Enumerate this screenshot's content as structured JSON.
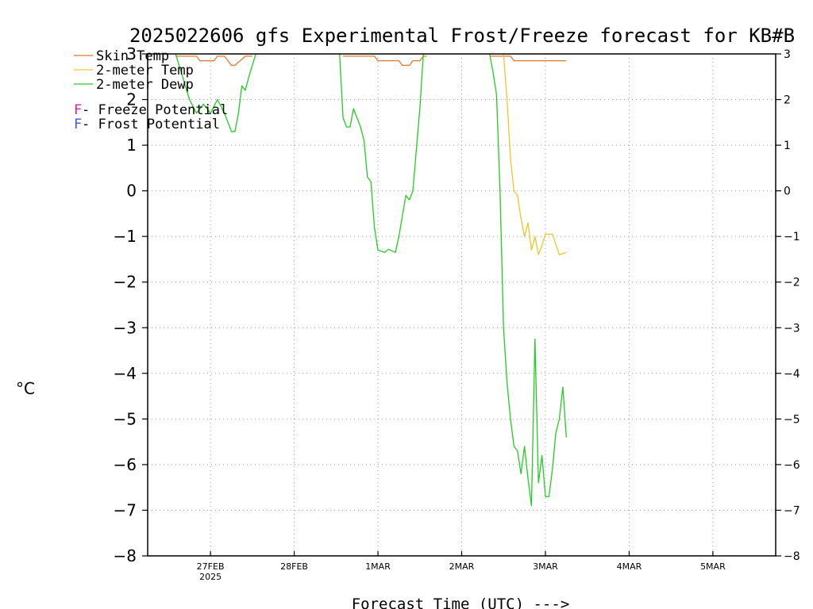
{
  "chart_data": {
    "type": "line",
    "title": "2025022606 gfs Experimental Frost/Freeze forecast for KB#B",
    "xlabel": "Forecast Time (UTC) --->",
    "ylabel": "°C",
    "ylim": [
      -8,
      3
    ],
    "yticks": [
      3,
      2,
      1,
      0,
      -1,
      -2,
      -3,
      -4,
      -5,
      -6,
      -7,
      -8
    ],
    "xlim": [
      "2025-02-26T06:00",
      "2025-03-05T18:00"
    ],
    "xticks": [
      {
        "label": "27FEB",
        "sublabel": "2025",
        "x": "2025-02-27T00:00"
      },
      {
        "label": "28FEB",
        "x": "2025-02-28T00:00"
      },
      {
        "label": "1MAR",
        "x": "2025-03-01T00:00"
      },
      {
        "label": "2MAR",
        "x": "2025-03-02T00:00"
      },
      {
        "label": "3MAR",
        "x": "2025-03-03T00:00"
      },
      {
        "label": "4MAR",
        "x": "2025-03-04T00:00"
      },
      {
        "label": "5MAR",
        "x": "2025-03-05T00:00"
      }
    ],
    "grid": true,
    "legend": [
      {
        "name": "Skin Temp",
        "color": "#e0782a"
      },
      {
        "name": "2-meter Temp",
        "color": "#e8c829"
      },
      {
        "name": "2-meter Dewp",
        "color": "#22cc22"
      },
      {
        "prefix": "F",
        "name": " - Freeze Potential",
        "color": "#cc22aa"
      },
      {
        "prefix": "F",
        "name": " - Frost Potential",
        "color": "#4455ee"
      }
    ],
    "series": [
      {
        "name": "Skin Temp",
        "color": "#e0782a",
        "segments": [
          [
            [
              "2025-02-26T14:00",
              2.95
            ],
            [
              "2025-02-26T20:00",
              2.95
            ],
            [
              "2025-02-26T21:00",
              2.85
            ],
            [
              "2025-02-27T01:00",
              2.85
            ],
            [
              "2025-02-27T02:00",
              2.95
            ],
            [
              "2025-02-27T04:00",
              2.95
            ],
            [
              "2025-02-27T06:00",
              2.75
            ],
            [
              "2025-02-27T07:00",
              2.75
            ],
            [
              "2025-02-27T10:00",
              2.95
            ],
            [
              "2025-02-27T12:00",
              2.95
            ]
          ],
          [
            [
              "2025-02-28T14:00",
              2.95
            ],
            [
              "2025-02-28T23:00",
              2.95
            ],
            [
              "2025-03-01T00:00",
              2.85
            ],
            [
              "2025-03-01T06:00",
              2.85
            ],
            [
              "2025-03-01T07:00",
              2.75
            ],
            [
              "2025-03-01T09:00",
              2.75
            ],
            [
              "2025-03-01T10:00",
              2.85
            ],
            [
              "2025-03-01T12:00",
              2.85
            ],
            [
              "2025-03-01T13:00",
              2.95
            ],
            [
              "2025-03-01T14:00",
              2.95
            ]
          ],
          [
            [
              "2025-03-02T08:00",
              2.95
            ],
            [
              "2025-03-02T14:00",
              2.95
            ],
            [
              "2025-03-02T15:00",
              2.85
            ],
            [
              "2025-03-03T06:00",
              2.85
            ]
          ]
        ]
      },
      {
        "name": "2-meter Temp",
        "color": "#e8c829",
        "segments": [
          [
            [
              "2025-03-02T12:00",
              3.0
            ],
            [
              "2025-03-02T13:00",
              2.0
            ],
            [
              "2025-03-02T14:00",
              0.7
            ],
            [
              "2025-03-02T15:00",
              0.0
            ],
            [
              "2025-03-02T16:00",
              -0.1
            ],
            [
              "2025-03-02T17:00",
              -0.6
            ],
            [
              "2025-03-02T18:00",
              -1.0
            ],
            [
              "2025-03-02T19:00",
              -0.7
            ],
            [
              "2025-03-02T20:00",
              -1.3
            ],
            [
              "2025-03-02T21:00",
              -1.0
            ],
            [
              "2025-03-02T22:00",
              -1.4
            ],
            [
              "2025-03-02T23:00",
              -1.2
            ],
            [
              "2025-03-03T00:00",
              -0.95
            ],
            [
              "2025-03-03T02:00",
              -0.95
            ],
            [
              "2025-03-03T04:00",
              -1.4
            ],
            [
              "2025-03-03T06:00",
              -1.35
            ]
          ]
        ]
      },
      {
        "name": "2-meter Dewp",
        "color": "#22cc22",
        "segments": [
          [
            [
              "2025-02-26T14:00",
              3.0
            ],
            [
              "2025-02-26T16:00",
              2.5
            ],
            [
              "2025-02-26T18:00",
              2.0
            ],
            [
              "2025-02-26T20:00",
              1.7
            ],
            [
              "2025-02-26T22:00",
              1.9
            ],
            [
              "2025-02-27T00:00",
              1.7
            ],
            [
              "2025-02-27T02:00",
              2.0
            ],
            [
              "2025-02-27T04:00",
              1.7
            ],
            [
              "2025-02-27T06:00",
              1.3
            ],
            [
              "2025-02-27T07:00",
              1.3
            ],
            [
              "2025-02-27T08:00",
              1.7
            ],
            [
              "2025-02-27T09:00",
              2.3
            ],
            [
              "2025-02-27T10:00",
              2.2
            ],
            [
              "2025-02-27T11:00",
              2.5
            ],
            [
              "2025-02-27T13:00",
              3.0
            ]
          ],
          [
            [
              "2025-02-28T13:00",
              3.0
            ],
            [
              "2025-02-28T14:00",
              1.6
            ],
            [
              "2025-02-28T15:00",
              1.4
            ],
            [
              "2025-02-28T16:00",
              1.4
            ],
            [
              "2025-02-28T17:00",
              1.8
            ],
            [
              "2025-02-28T18:00",
              1.6
            ],
            [
              "2025-02-28T19:00",
              1.4
            ],
            [
              "2025-02-28T20:00",
              1.1
            ],
            [
              "2025-02-28T21:00",
              0.3
            ],
            [
              "2025-02-28T22:00",
              0.2
            ],
            [
              "2025-02-28T23:00",
              -0.8
            ],
            [
              "2025-03-01T00:00",
              -1.3
            ],
            [
              "2025-03-01T02:00",
              -1.35
            ],
            [
              "2025-03-01T03:00",
              -1.28
            ],
            [
              "2025-03-01T05:00",
              -1.35
            ],
            [
              "2025-03-01T06:00",
              -1.0
            ],
            [
              "2025-03-01T08:00",
              -0.1
            ],
            [
              "2025-03-01T09:00",
              -0.2
            ],
            [
              "2025-03-01T10:00",
              0.0
            ],
            [
              "2025-03-01T11:00",
              0.9
            ],
            [
              "2025-03-01T12:00",
              1.8
            ],
            [
              "2025-03-01T13:00",
              3.0
            ]
          ],
          [
            [
              "2025-03-02T08:00",
              3.0
            ],
            [
              "2025-03-02T09:00",
              2.6
            ],
            [
              "2025-03-02T10:00",
              2.1
            ],
            [
              "2025-03-02T11:00",
              0.0
            ],
            [
              "2025-03-02T12:00",
              -3.0
            ],
            [
              "2025-03-02T13:00",
              -4.2
            ],
            [
              "2025-03-02T14:00",
              -5.0
            ],
            [
              "2025-03-02T15:00",
              -5.6
            ],
            [
              "2025-03-02T16:00",
              -5.7
            ],
            [
              "2025-03-02T17:00",
              -6.2
            ],
            [
              "2025-03-02T18:00",
              -5.6
            ],
            [
              "2025-03-02T19:00",
              -6.3
            ],
            [
              "2025-03-02T20:00",
              -6.9
            ],
            [
              "2025-03-02T21:00",
              -3.25
            ],
            [
              "2025-03-02T22:00",
              -6.4
            ],
            [
              "2025-03-02T23:00",
              -5.8
            ],
            [
              "2025-03-03T00:00",
              -6.7
            ],
            [
              "2025-03-03T01:00",
              -6.7
            ],
            [
              "2025-03-03T02:00",
              -6.1
            ],
            [
              "2025-03-03T03:00",
              -5.3
            ],
            [
              "2025-03-03T04:00",
              -5.0
            ],
            [
              "2025-03-03T05:00",
              -4.3
            ],
            [
              "2025-03-03T06:00",
              -5.4
            ]
          ]
        ]
      }
    ]
  }
}
